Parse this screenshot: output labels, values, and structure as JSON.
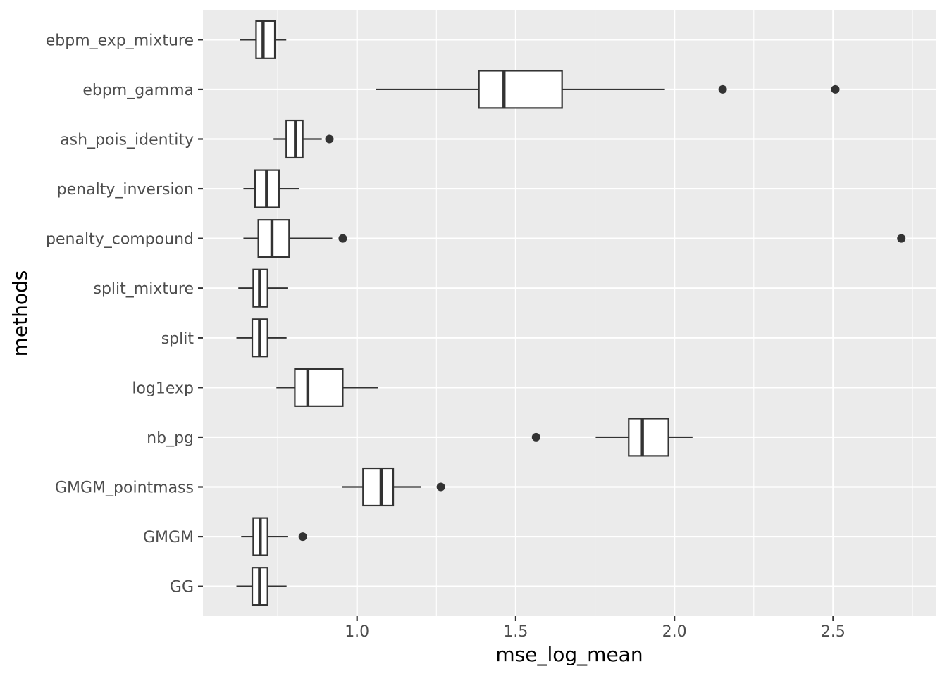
{
  "chart_data": {
    "type": "boxplot",
    "orientation": "horizontal",
    "title": "",
    "xlabel": "mse_log_mean",
    "ylabel": "methods",
    "xlim": [
      0.5145,
      2.8255
    ],
    "x_ticks": [
      1.0,
      1.5,
      2.0,
      2.5
    ],
    "x_tick_labels": [
      "1.0",
      "1.5",
      "2.0",
      "2.5"
    ],
    "grid": true,
    "categories": [
      "GG",
      "GMGM",
      "GMGM_pointmass",
      "nb_pg",
      "log1exp",
      "split",
      "split_mixture",
      "penalty_compound",
      "penalty_inversion",
      "ash_pois_identity",
      "ebpm_gamma",
      "ebpm_exp_mixture"
    ],
    "boxes": [
      {
        "category": "GG",
        "whisker_low": 0.62,
        "q1": 0.67,
        "median": 0.693,
        "q3": 0.718,
        "whisker_high": 0.778,
        "outliers": []
      },
      {
        "category": "GMGM",
        "whisker_low": 0.635,
        "q1": 0.673,
        "median": 0.695,
        "q3": 0.718,
        "whisker_high": 0.783,
        "outliers": [
          0.829
        ]
      },
      {
        "category": "GMGM_pointmass",
        "whisker_low": 0.952,
        "q1": 1.019,
        "median": 1.076,
        "q3": 1.114,
        "whisker_high": 1.201,
        "outliers": [
          1.264
        ]
      },
      {
        "category": "nb_pg",
        "whisker_low": 1.752,
        "q1": 1.856,
        "median": 1.899,
        "q3": 1.981,
        "whisker_high": 2.057,
        "outliers": [
          1.564
        ]
      },
      {
        "category": "log1exp",
        "whisker_low": 0.746,
        "q1": 0.804,
        "median": 0.845,
        "q3": 0.955,
        "whisker_high": 1.067,
        "outliers": []
      },
      {
        "category": "split",
        "whisker_low": 0.62,
        "q1": 0.67,
        "median": 0.693,
        "q3": 0.718,
        "whisker_high": 0.778,
        "outliers": []
      },
      {
        "category": "split_mixture",
        "whisker_low": 0.626,
        "q1": 0.673,
        "median": 0.693,
        "q3": 0.718,
        "whisker_high": 0.783,
        "outliers": []
      },
      {
        "category": "penalty_compound",
        "whisker_low": 0.642,
        "q1": 0.689,
        "median": 0.732,
        "q3": 0.786,
        "whisker_high": 0.922,
        "outliers": [
          0.955,
          2.715
        ]
      },
      {
        "category": "penalty_inversion",
        "whisker_low": 0.642,
        "q1": 0.679,
        "median": 0.715,
        "q3": 0.754,
        "whisker_high": 0.817,
        "outliers": []
      },
      {
        "category": "ash_pois_identity",
        "whisker_low": 0.737,
        "q1": 0.777,
        "median": 0.806,
        "q3": 0.829,
        "whisker_high": 0.889,
        "outliers": [
          0.913
        ]
      },
      {
        "category": "ebpm_gamma",
        "whisker_low": 1.06,
        "q1": 1.384,
        "median": 1.463,
        "q3": 1.646,
        "whisker_high": 1.97,
        "outliers": [
          2.152,
          2.507
        ]
      },
      {
        "category": "ebpm_exp_mixture",
        "whisker_low": 0.631,
        "q1": 0.682,
        "median": 0.704,
        "q3": 0.741,
        "whisker_high": 0.777,
        "outliers": []
      }
    ]
  }
}
